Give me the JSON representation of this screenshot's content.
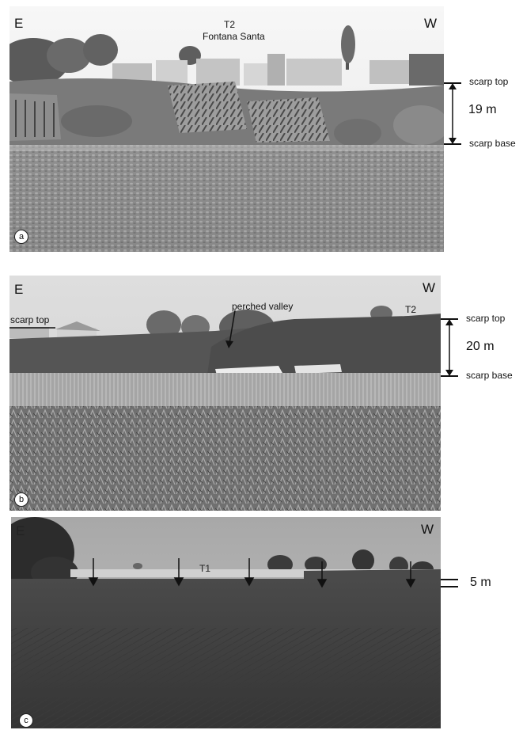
{
  "panel_a": {
    "badge": "a",
    "dir_left": "E",
    "dir_right": "W",
    "terrace": "T2",
    "place": "Fontana Santa",
    "scarp_top": "scarp top",
    "scarp_base": "scarp base",
    "height": "19 m"
  },
  "panel_b": {
    "badge": "b",
    "dir_left": "E",
    "dir_right": "W",
    "terrace": "T2",
    "perched": "perched valley",
    "scarp_top_left": "scarp top",
    "scarp_top": "scarp top",
    "scarp_base": "scarp base",
    "height": "20 m"
  },
  "panel_c": {
    "badge": "c",
    "dir_left": "E",
    "dir_right": "W",
    "terrace": "T1",
    "height": "5 m"
  }
}
